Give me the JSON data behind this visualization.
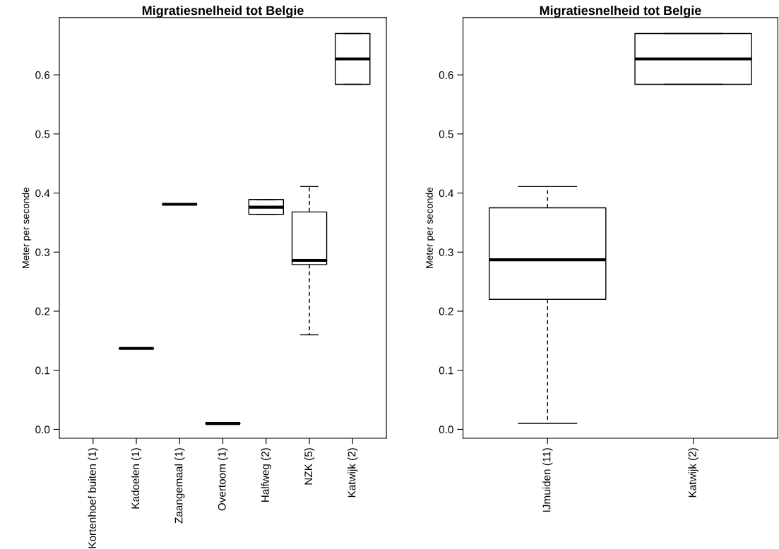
{
  "chart_data": [
    {
      "type": "box",
      "title": "Migratiesnelheid tot Belgie",
      "ylabel": "Meter per seconde",
      "categories": [
        "Kortenhoef buiten (1)",
        "Kadoelen (1)",
        "Zaangemaal (1)",
        "Overtoom (1)",
        "Halfweg (2)",
        "NZK (5)",
        "Katwijk (2)"
      ],
      "boxes": [
        null,
        {
          "low": 0.137,
          "q1": 0.137,
          "median": 0.137,
          "q3": 0.137,
          "high": 0.137
        },
        {
          "low": 0.381,
          "q1": 0.381,
          "median": 0.381,
          "q3": 0.381,
          "high": 0.381
        },
        {
          "low": 0.01,
          "q1": 0.01,
          "median": 0.01,
          "q3": 0.01,
          "high": 0.01
        },
        {
          "low": 0.364,
          "q1": 0.364,
          "median": 0.376,
          "q3": 0.389,
          "high": 0.389
        },
        {
          "low": 0.16,
          "q1": 0.279,
          "median": 0.286,
          "q3": 0.368,
          "high": 0.411
        },
        {
          "low": 0.584,
          "q1": 0.584,
          "median": 0.627,
          "q3": 0.67,
          "high": 0.67
        }
      ],
      "ylim": [
        -0.015,
        0.697
      ],
      "yticks": [
        {
          "value": 0.0,
          "label": "0.0"
        },
        0.1,
        0.2,
        0.3,
        0.4,
        0.5,
        0.6
      ],
      "grid": false
    },
    {
      "type": "box",
      "title": "Migratiesnelheid tot Belgie",
      "ylabel": "Meter per seconde",
      "categories": [
        "IJmuiden (11)",
        "Katwijk (2)"
      ],
      "boxes": [
        {
          "low": 0.01,
          "q1": 0.22,
          "median": 0.287,
          "q3": 0.375,
          "high": 0.411
        },
        {
          "low": 0.584,
          "q1": 0.584,
          "median": 0.627,
          "q3": 0.67,
          "high": 0.67
        }
      ],
      "ylim": [
        -0.015,
        0.697
      ],
      "yticks": [
        {
          "value": 0.0,
          "label": "0.0"
        },
        0.1,
        0.2,
        0.3,
        0.4,
        0.5,
        0.6
      ],
      "grid": false
    }
  ]
}
